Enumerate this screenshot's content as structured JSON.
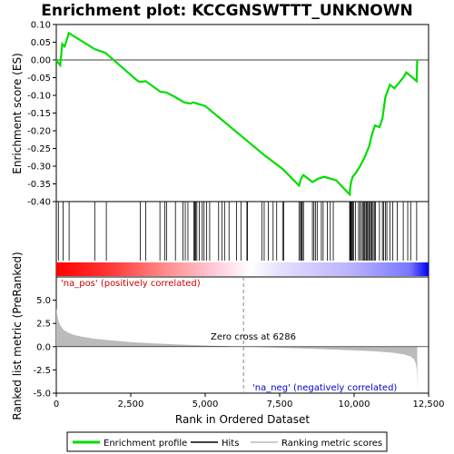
{
  "chart_data": [
    {
      "type": "line",
      "title": "Enrichment plot: KCCGNSWTTT_UNKNOWN",
      "ylabel": "Enrichment score (ES)",
      "xlim": [
        0,
        12500
      ],
      "ylim": [
        -0.4,
        0.1
      ],
      "yticks": [
        "0.10",
        "0.05",
        "0.00",
        "-0.05",
        "-0.10",
        "-0.15",
        "-0.20",
        "-0.25",
        "-0.30",
        "-0.35",
        "-0.40"
      ],
      "color": "#00dd00",
      "series": [
        {
          "name": "Enrichment profile",
          "x": [
            0,
            60,
            130,
            200,
            280,
            420,
            1300,
            1650,
            2700,
            2800,
            3000,
            3500,
            3700,
            4000,
            4300,
            4500,
            4600,
            4800,
            5000,
            5500,
            6286,
            7000,
            7600,
            8150,
            8200,
            8250,
            8300,
            8600,
            8800,
            9000,
            9200,
            9400,
            9850,
            9870,
            9900,
            9950,
            10050,
            10200,
            10350,
            10500,
            10600,
            10700,
            10850,
            10950,
            11050,
            11200,
            11350,
            11500,
            11650,
            11750,
            12100,
            12120
          ],
          "y": [
            0.0,
            -0.008,
            -0.015,
            0.045,
            0.038,
            0.076,
            0.03,
            0.02,
            -0.057,
            -0.062,
            -0.06,
            -0.09,
            -0.092,
            -0.105,
            -0.12,
            -0.123,
            -0.12,
            -0.125,
            -0.13,
            -0.165,
            -0.22,
            -0.27,
            -0.308,
            -0.355,
            -0.34,
            -0.33,
            -0.325,
            -0.345,
            -0.335,
            -0.33,
            -0.335,
            -0.34,
            -0.38,
            -0.36,
            -0.345,
            -0.33,
            -0.32,
            -0.3,
            -0.275,
            -0.245,
            -0.21,
            -0.185,
            -0.19,
            -0.165,
            -0.105,
            -0.07,
            -0.08,
            -0.065,
            -0.05,
            -0.035,
            -0.06,
            0.0
          ]
        }
      ]
    },
    {
      "type": "hits",
      "hit_positions": [
        70,
        230,
        430,
        1290,
        1680,
        2820,
        3000,
        3480,
        3640,
        3700,
        4000,
        4250,
        4330,
        4420,
        4620,
        4650,
        4680,
        4720,
        4800,
        4900,
        4960,
        5050,
        5150,
        5450,
        5560,
        5650,
        5800,
        6050,
        6200,
        6400,
        6420,
        6900,
        6980,
        7120,
        7280,
        7400,
        7600,
        7640,
        8150,
        8200,
        8230,
        8260,
        8300,
        8600,
        8650,
        8700,
        8760,
        8900,
        8960,
        9100,
        9200,
        9300,
        9850,
        9870,
        9880,
        9900,
        9920,
        9950,
        9980,
        10050,
        10150,
        10200,
        10250,
        10300,
        10330,
        10360,
        10400,
        10430,
        10460,
        10500,
        10540,
        10580,
        10600,
        10640,
        10680,
        10720,
        10850,
        10950,
        10990,
        11050,
        11100,
        11200,
        11300,
        11450,
        11650,
        11800,
        11900,
        12100
      ]
    },
    {
      "type": "area",
      "ylabel": "Ranked list metric (PreRanked)",
      "xlabel": "Rank in Ordered Dataset",
      "xlim": [
        0,
        12500
      ],
      "ylim": [
        -5.0,
        7.5
      ],
      "xticks": [
        "0",
        "2,500",
        "5,000",
        "7,500",
        "10,000",
        "12,500"
      ],
      "yticks": [
        "5.0",
        "2.5",
        "0.0",
        "-2.5",
        "-5.0"
      ],
      "x": [
        0,
        30,
        80,
        150,
        250,
        400,
        600,
        900,
        1300,
        1800,
        2500,
        3300,
        4200,
        5200,
        6286,
        7200,
        8200,
        9200,
        10200,
        10800,
        11300,
        11700,
        11900,
        12000,
        12060,
        12100,
        12120
      ],
      "y": [
        4.2,
        3.4,
        2.7,
        2.2,
        1.8,
        1.5,
        1.25,
        1.05,
        0.85,
        0.68,
        0.5,
        0.35,
        0.22,
        0.1,
        0.0,
        -0.1,
        -0.2,
        -0.3,
        -0.42,
        -0.52,
        -0.65,
        -0.85,
        -1.05,
        -1.3,
        -1.7,
        -2.4,
        -4.6
      ],
      "annotations": [
        "Zero cross at 6286",
        "'na_pos' (positively correlated)",
        "'na_neg' (negatively correlated)"
      ]
    }
  ],
  "legend": {
    "items": [
      {
        "label": "Enrichment profile",
        "color": "#00dd00"
      },
      {
        "label": "Hits",
        "color": "#000000"
      },
      {
        "label": "Ranking metric scores",
        "color": "#bbbbbb"
      }
    ]
  }
}
